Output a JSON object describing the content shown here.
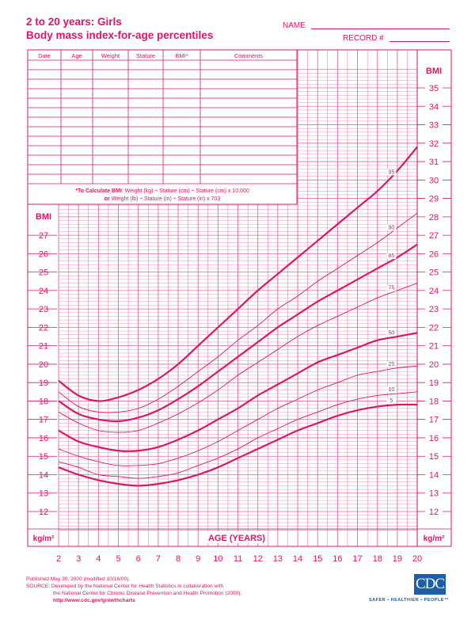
{
  "header": {
    "title_line1": "2 to 20 years: Girls",
    "title_line2": "Body mass index-for-age percentiles",
    "name_label": "NAME",
    "record_label": "RECORD #"
  },
  "table": {
    "columns": [
      "Date",
      "Age",
      "Weight",
      "Stature",
      "BMI*",
      "Comments"
    ],
    "empty_rows": 13
  },
  "formula": {
    "line1_bold": "*To Calculate BMI",
    "line1_rest": ": Weight (kg) ÷ Stature (cm) ÷ Stature (cm) x 10,000",
    "line2_bold": "or",
    "line2_rest": " Weight (lb) ÷ Stature (in) ÷ Stature (in) x 703"
  },
  "footer": {
    "published": "Published May 30, 2000 (modified 10/16/00).",
    "source1": "SOURCE: Developed by the National Center for Health Statistics in collaboration with",
    "source2": "the National Center for Chronic Disease Prevention and Health Promotion (2000).",
    "url": "http://www.cdc.gov/growthcharts",
    "logo_text": "CDC",
    "logo_tagline": "SAFER • HEALTHIER • PEOPLE™"
  },
  "colors": {
    "ink": "#d6186b",
    "grid": "#e46aa0",
    "logo": "#1a5fa8"
  },
  "chart_data": {
    "type": "line",
    "title": "Body mass index-for-age percentiles",
    "xlabel": "AGE (YEARS)",
    "ylabel": "BMI",
    "yunit": "kg/m²",
    "xlim": [
      2,
      20
    ],
    "ylim": [
      12,
      35
    ],
    "grid": true,
    "x_ticks": [
      2,
      3,
      4,
      5,
      6,
      7,
      8,
      9,
      10,
      11,
      12,
      13,
      14,
      15,
      16,
      17,
      18,
      19,
      20
    ],
    "y_ticks_left": [
      12,
      13,
      14,
      15,
      16,
      17,
      18,
      19,
      20,
      21,
      22,
      23,
      24,
      25,
      26,
      27
    ],
    "y_ticks_right": [
      12,
      13,
      14,
      15,
      16,
      17,
      18,
      19,
      20,
      21,
      22,
      23,
      24,
      25,
      26,
      27,
      28,
      29,
      30,
      31,
      32,
      33,
      34,
      35
    ],
    "x": [
      2,
      3,
      4,
      5,
      6,
      7,
      8,
      9,
      10,
      11,
      12,
      13,
      14,
      15,
      16,
      17,
      18,
      19,
      20
    ],
    "series": [
      {
        "name": "95",
        "bold": true,
        "values": [
          19.1,
          18.3,
          18.0,
          18.2,
          18.6,
          19.2,
          20.0,
          21.0,
          22.0,
          23.0,
          24.0,
          24.9,
          25.8,
          26.7,
          27.6,
          28.5,
          29.4,
          30.5,
          31.8
        ]
      },
      {
        "name": "90",
        "bold": false,
        "values": [
          18.5,
          17.7,
          17.4,
          17.4,
          17.6,
          18.1,
          18.8,
          19.6,
          20.4,
          21.3,
          22.1,
          23.0,
          23.7,
          24.5,
          25.2,
          25.9,
          26.6,
          27.4,
          28.2
        ]
      },
      {
        "name": "85",
        "bold": true,
        "values": [
          18.0,
          17.3,
          17.0,
          16.9,
          17.1,
          17.5,
          18.1,
          18.8,
          19.6,
          20.4,
          21.2,
          22.0,
          22.7,
          23.4,
          24.0,
          24.6,
          25.2,
          25.8,
          26.5
        ]
      },
      {
        "name": "75",
        "bold": false,
        "values": [
          17.4,
          16.8,
          16.4,
          16.3,
          16.4,
          16.8,
          17.3,
          17.9,
          18.6,
          19.4,
          20.1,
          20.8,
          21.5,
          22.1,
          22.6,
          23.1,
          23.6,
          24.0,
          24.4
        ]
      },
      {
        "name": "50",
        "bold": true,
        "values": [
          16.4,
          15.8,
          15.5,
          15.3,
          15.3,
          15.5,
          15.9,
          16.4,
          17.0,
          17.6,
          18.3,
          18.9,
          19.5,
          20.1,
          20.5,
          20.9,
          21.3,
          21.5,
          21.7
        ]
      },
      {
        "name": "25",
        "bold": false,
        "values": [
          15.4,
          15.0,
          14.7,
          14.5,
          14.5,
          14.6,
          14.9,
          15.3,
          15.8,
          16.4,
          17.0,
          17.6,
          18.1,
          18.6,
          19.0,
          19.4,
          19.6,
          19.8,
          19.9
        ]
      },
      {
        "name": "10",
        "bold": false,
        "values": [
          14.7,
          14.4,
          14.0,
          13.9,
          13.8,
          13.9,
          14.1,
          14.5,
          14.9,
          15.4,
          16.0,
          16.5,
          17.0,
          17.4,
          17.8,
          18.1,
          18.3,
          18.4,
          18.5
        ]
      },
      {
        "name": "5",
        "bold": true,
        "values": [
          14.4,
          14.0,
          13.7,
          13.5,
          13.4,
          13.5,
          13.7,
          14.0,
          14.4,
          14.9,
          15.4,
          15.9,
          16.4,
          16.8,
          17.2,
          17.5,
          17.7,
          17.8,
          17.8
        ]
      }
    ]
  }
}
